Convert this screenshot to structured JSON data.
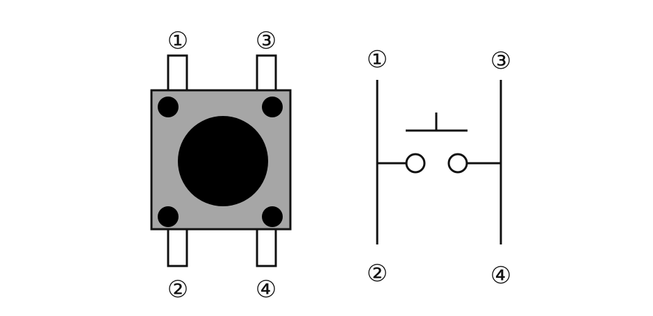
{
  "diagram": {
    "colors": {
      "background": "#ffffff",
      "outline": "#111111",
      "body_fill": "#a6a6a6",
      "pin_fill": "#ffffff",
      "dot_fill": "#000000"
    },
    "switch_package": {
      "pins": {
        "top_left": "①",
        "top_right": "③",
        "bottom_left": "②",
        "bottom_right": "④"
      }
    },
    "schematic": {
      "pins": {
        "top_left": "①",
        "top_right": "③",
        "bottom_left": "②",
        "bottom_right": "④"
      }
    }
  }
}
